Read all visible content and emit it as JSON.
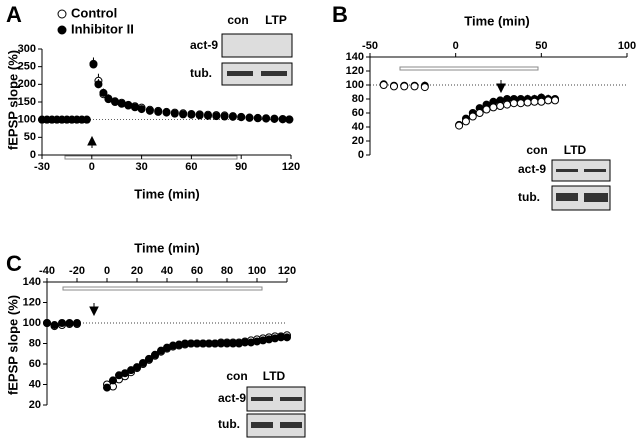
{
  "chart_data": [
    {
      "type": "scatter",
      "panel": "A",
      "x_label": "Time (min)",
      "y_label": "fEPSP slope (%)",
      "xaxis_position": "bottom",
      "xlim": [
        -30,
        120
      ],
      "xticks": [
        -30,
        0,
        30,
        60,
        90,
        120
      ],
      "ylim": [
        0,
        300
      ],
      "yticks": [
        0,
        50,
        100,
        150,
        200,
        250,
        300
      ],
      "hline": 100,
      "x": [
        -30,
        -27,
        -24,
        -21,
        -18,
        -15,
        -12,
        -9,
        -6,
        -3,
        1,
        4,
        7,
        10,
        14,
        18,
        22,
        26,
        30,
        35,
        40,
        45,
        50,
        55,
        60,
        65,
        70,
        75,
        80,
        85,
        90,
        95,
        100,
        105,
        110,
        115,
        119
      ],
      "series": [
        {
          "name": "Control",
          "color": "#000000",
          "marker_fill": "#ffffff",
          "values": [
            100,
            100,
            100,
            100,
            100,
            100,
            100,
            100,
            100,
            100,
            256,
            210,
            172,
            160,
            152,
            148,
            142,
            138,
            134,
            128,
            125,
            122,
            120,
            118,
            116,
            115,
            114,
            113,
            112,
            110,
            108,
            106,
            105,
            104,
            103,
            102,
            101
          ],
          "errors": [
            null,
            null,
            null,
            null,
            null,
            null,
            null,
            null,
            null,
            null,
            15,
            20,
            15,
            12,
            10,
            10,
            10,
            10,
            10,
            10,
            10,
            10,
            10,
            10,
            10,
            10,
            10,
            8,
            8,
            8,
            6,
            6,
            6,
            5,
            5,
            5,
            5
          ]
        },
        {
          "name": "Inhibitor II",
          "color": "#000000",
          "marker_fill": "#000000",
          "values": [
            100,
            100,
            100,
            100,
            100,
            100,
            100,
            100,
            100,
            100,
            258,
            200,
            176,
            158,
            150,
            145,
            140,
            135,
            130,
            125,
            122,
            120,
            117,
            115,
            114,
            112,
            111,
            110,
            109,
            108,
            107,
            105,
            104,
            103,
            102,
            101,
            100
          ],
          "errors": [
            null,
            null,
            null,
            null,
            null,
            null,
            null,
            null,
            null,
            null,
            18,
            15,
            12,
            10,
            8,
            8,
            8,
            8,
            8,
            8,
            8,
            8,
            8,
            8,
            8,
            8,
            8,
            8,
            6,
            6,
            6,
            5,
            5,
            5,
            5,
            5,
            5
          ]
        }
      ],
      "inset": {
        "columns": [
          "con",
          "LTP"
        ],
        "rows": [
          "act-9",
          "tub."
        ]
      }
    },
    {
      "type": "scatter",
      "panel": "B",
      "x_label": "Time (min)",
      "xaxis_position": "top",
      "xlim": [
        -50,
        100
      ],
      "xticks": [
        -50,
        0,
        50,
        100
      ],
      "ylim": [
        0,
        140
      ],
      "yticks": [
        0,
        20,
        40,
        60,
        80,
        100,
        120,
        140
      ],
      "hline": 100,
      "x": [
        -42,
        -36,
        -30,
        -24,
        -18,
        2,
        6,
        10,
        14,
        18,
        22,
        26,
        30,
        34,
        38,
        42,
        46,
        50,
        54,
        58
      ],
      "series": [
        {
          "name": "Inhibitor II",
          "color": "#000000",
          "marker_fill": "#000000",
          "values": [
            101,
            99,
            99,
            99,
            99,
            43,
            52,
            60,
            67,
            72,
            76,
            78,
            80,
            80,
            80,
            80,
            80,
            82,
            80,
            80
          ],
          "errors": [
            null,
            null,
            null,
            null,
            null,
            2,
            3,
            3,
            4,
            4,
            4,
            5,
            5,
            5,
            5,
            6,
            6,
            6,
            6,
            5
          ]
        },
        {
          "name": "Control",
          "color": "#000000",
          "marker_fill": "#ffffff",
          "values": [
            100,
            98,
            98,
            98,
            97,
            42,
            48,
            55,
            60,
            65,
            68,
            70,
            72,
            74,
            74,
            75,
            76,
            76,
            78,
            78
          ],
          "errors": [
            null,
            null,
            3,
            3,
            8,
            2,
            3,
            4,
            5,
            5,
            6,
            6,
            7,
            8,
            8,
            10,
            8,
            10,
            8,
            5
          ]
        }
      ],
      "inset": {
        "columns": [
          "con",
          "LTD"
        ],
        "rows": [
          "act-9",
          "tub."
        ]
      }
    },
    {
      "type": "scatter",
      "panel": "C",
      "x_label": "Time (min)",
      "y_label": "fEPSP slope (%)",
      "xaxis_position": "top",
      "xlim": [
        -40,
        120
      ],
      "xticks": [
        -40,
        -20,
        0,
        20,
        40,
        60,
        80,
        100,
        120
      ],
      "ylim": [
        20,
        140
      ],
      "yticks": [
        20,
        40,
        60,
        80,
        100,
        120,
        140
      ],
      "hline": 100,
      "x": [
        -40,
        -35,
        -30,
        -25,
        -20,
        0,
        4,
        8,
        12,
        16,
        20,
        24,
        28,
        32,
        36,
        40,
        44,
        48,
        52,
        56,
        60,
        64,
        68,
        72,
        76,
        80,
        84,
        88,
        92,
        96,
        100,
        104,
        108,
        112,
        116,
        120
      ],
      "series": [
        {
          "name": "Control",
          "color": "#000000",
          "marker_fill": "#ffffff",
          "values": [
            100,
            97,
            98,
            99,
            99,
            40,
            38,
            45,
            48,
            52,
            56,
            60,
            64,
            68,
            72,
            75,
            77,
            78,
            79,
            80,
            80,
            80,
            80,
            80,
            81,
            81,
            81,
            81,
            82,
            83,
            84,
            85,
            86,
            87,
            87,
            88
          ]
        },
        {
          "name": "Inhibitor II",
          "color": "#000000",
          "marker_fill": "#000000",
          "values": [
            100,
            98,
            100,
            100,
            100,
            37,
            44,
            49,
            51,
            54,
            57,
            61,
            65,
            69,
            73,
            76,
            78,
            79,
            80,
            80,
            80,
            80,
            80,
            80,
            80,
            80,
            80,
            80,
            81,
            81,
            82,
            83,
            84,
            85,
            86,
            86
          ]
        }
      ],
      "inset": {
        "columns": [
          "con",
          "LTD"
        ],
        "rows": [
          "act-9",
          "tub."
        ]
      }
    }
  ]
}
